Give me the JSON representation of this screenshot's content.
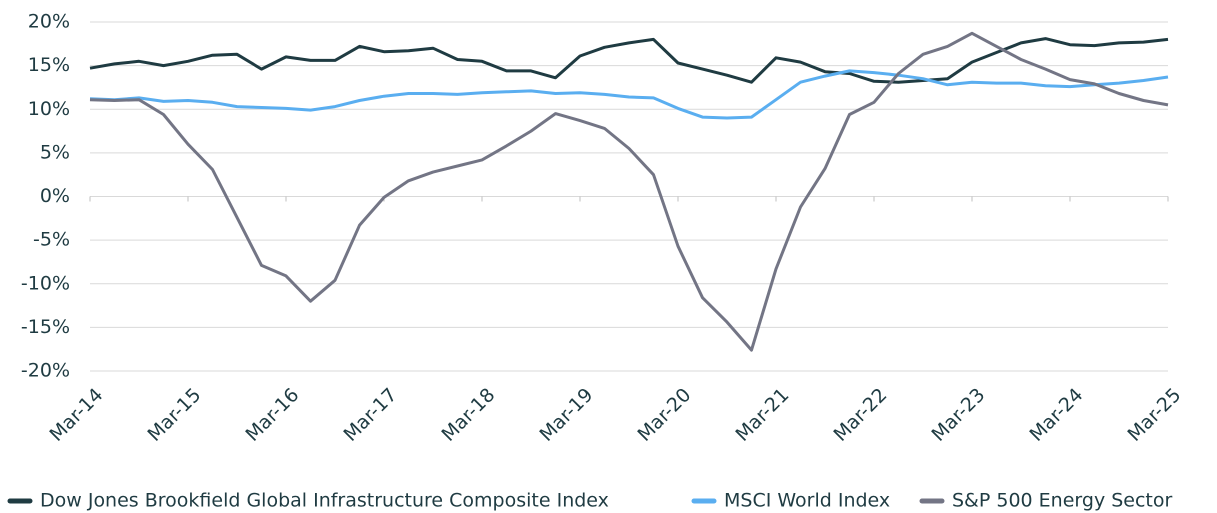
{
  "chart_data": {
    "type": "line",
    "categories": [
      "Mar-14",
      null,
      null,
      null,
      "Mar-15",
      null,
      null,
      null,
      "Mar-16",
      null,
      null,
      null,
      "Mar-17",
      null,
      null,
      null,
      "Mar-18",
      null,
      null,
      null,
      "Mar-19",
      null,
      null,
      null,
      "Mar-20",
      null,
      null,
      null,
      "Mar-21",
      null,
      null,
      null,
      "Mar-22",
      null,
      null,
      null,
      "Mar-23",
      null,
      null,
      null,
      "Mar-24",
      null,
      null,
      null,
      "Mar-25"
    ],
    "series": [
      {
        "name": "Dow Jones Brookfield Global Infrastructure Composite Index",
        "color": "#1f3b42",
        "values": [
          14.7,
          15.2,
          15.5,
          15.0,
          15.5,
          16.2,
          16.3,
          14.6,
          16.0,
          15.6,
          15.6,
          17.2,
          16.6,
          16.7,
          17.0,
          15.7,
          15.5,
          14.4,
          14.4,
          13.6,
          16.1,
          17.1,
          17.6,
          18.0,
          15.3,
          14.6,
          13.9,
          13.1,
          15.9,
          15.4,
          14.3,
          14.1,
          13.2,
          13.1,
          13.3,
          13.5,
          15.4,
          16.5,
          17.6,
          18.1,
          17.4,
          17.3,
          17.6,
          17.7,
          18.0
        ]
      },
      {
        "name": "MSCI World Index",
        "color": "#5aaef0",
        "values": [
          11.2,
          11.1,
          11.3,
          10.9,
          11.0,
          10.8,
          10.3,
          10.2,
          10.1,
          9.9,
          10.3,
          11.0,
          11.5,
          11.8,
          11.8,
          11.7,
          11.9,
          12.0,
          12.1,
          11.8,
          11.9,
          11.7,
          11.4,
          11.3,
          10.1,
          9.1,
          9.0,
          9.1,
          11.1,
          13.1,
          13.8,
          14.4,
          14.2,
          13.9,
          13.5,
          12.8,
          13.1,
          13.0,
          13.0,
          12.7,
          12.6,
          12.8,
          13.0,
          13.3,
          13.7
        ]
      },
      {
        "name": "S&P 500 Energy Sector",
        "color": "#737585",
        "values": [
          11.1,
          11.0,
          11.1,
          9.4,
          6.0,
          3.1,
          -2.4,
          -7.9,
          -9.1,
          -12.0,
          -9.6,
          -3.3,
          -0.1,
          1.8,
          2.8,
          3.5,
          4.2,
          5.8,
          7.5,
          9.5,
          8.7,
          7.8,
          5.5,
          2.5,
          -5.7,
          -11.6,
          -14.4,
          -17.6,
          -8.3,
          -1.2,
          3.2,
          9.4,
          10.8,
          14.1,
          16.3,
          17.2,
          18.7,
          17.2,
          15.7,
          14.6,
          13.4,
          12.9,
          11.8,
          11.0,
          10.5
        ]
      }
    ],
    "ylim": [
      -20,
      20
    ],
    "yticks": [
      {
        "value": -20,
        "label": "-20%"
      },
      {
        "value": -15,
        "label": "-15%"
      },
      {
        "value": -10,
        "label": "-10%"
      },
      {
        "value": -5,
        "label": "-5%"
      },
      {
        "value": 0,
        "label": "0%"
      },
      {
        "value": 5,
        "label": "5%"
      },
      {
        "value": 10,
        "label": "10%"
      },
      {
        "value": 15,
        "label": "15%"
      },
      {
        "value": 20,
        "label": "20%"
      }
    ],
    "grid": true,
    "legend": "bottom"
  }
}
